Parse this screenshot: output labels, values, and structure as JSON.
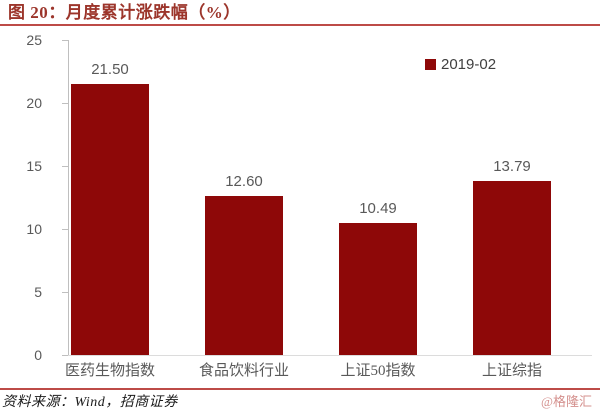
{
  "title": "图 20：月度累计涨跌幅（%）",
  "chart_data": {
    "type": "bar",
    "title": "图 20：月度累计涨跌幅（%）",
    "categories": [
      "医药生物指数",
      "食品饮料行业",
      "上证50指数",
      "上证综指"
    ],
    "series": [
      {
        "name": "2019-02",
        "values": [
          21.5,
          12.6,
          10.49,
          13.79
        ]
      }
    ],
    "data_labels": [
      "21.50",
      "12.60",
      "10.49",
      "13.79"
    ],
    "xlabel": "",
    "ylabel": "",
    "ylim": [
      0,
      25
    ],
    "yticks": [
      0,
      5,
      10,
      15,
      20,
      25
    ],
    "grid": false,
    "legend": {
      "label": "2019-02",
      "position": "top-right"
    },
    "bar_color": "#8E0808"
  },
  "footer": {
    "source": "资料来源：Wind，招商证券",
    "watermark": "@格隆汇"
  },
  "colors": {
    "bar": "#8E0808",
    "title_text": "#9C352B",
    "rule_line": "#BD4B47",
    "axis_line": "#BFBFBF",
    "tick_label": "#595959",
    "value_label": "#595959",
    "category_label": "#595959",
    "legend_text": "#404040",
    "watermark": "#D4908D",
    "background": "#FFFFFF"
  }
}
